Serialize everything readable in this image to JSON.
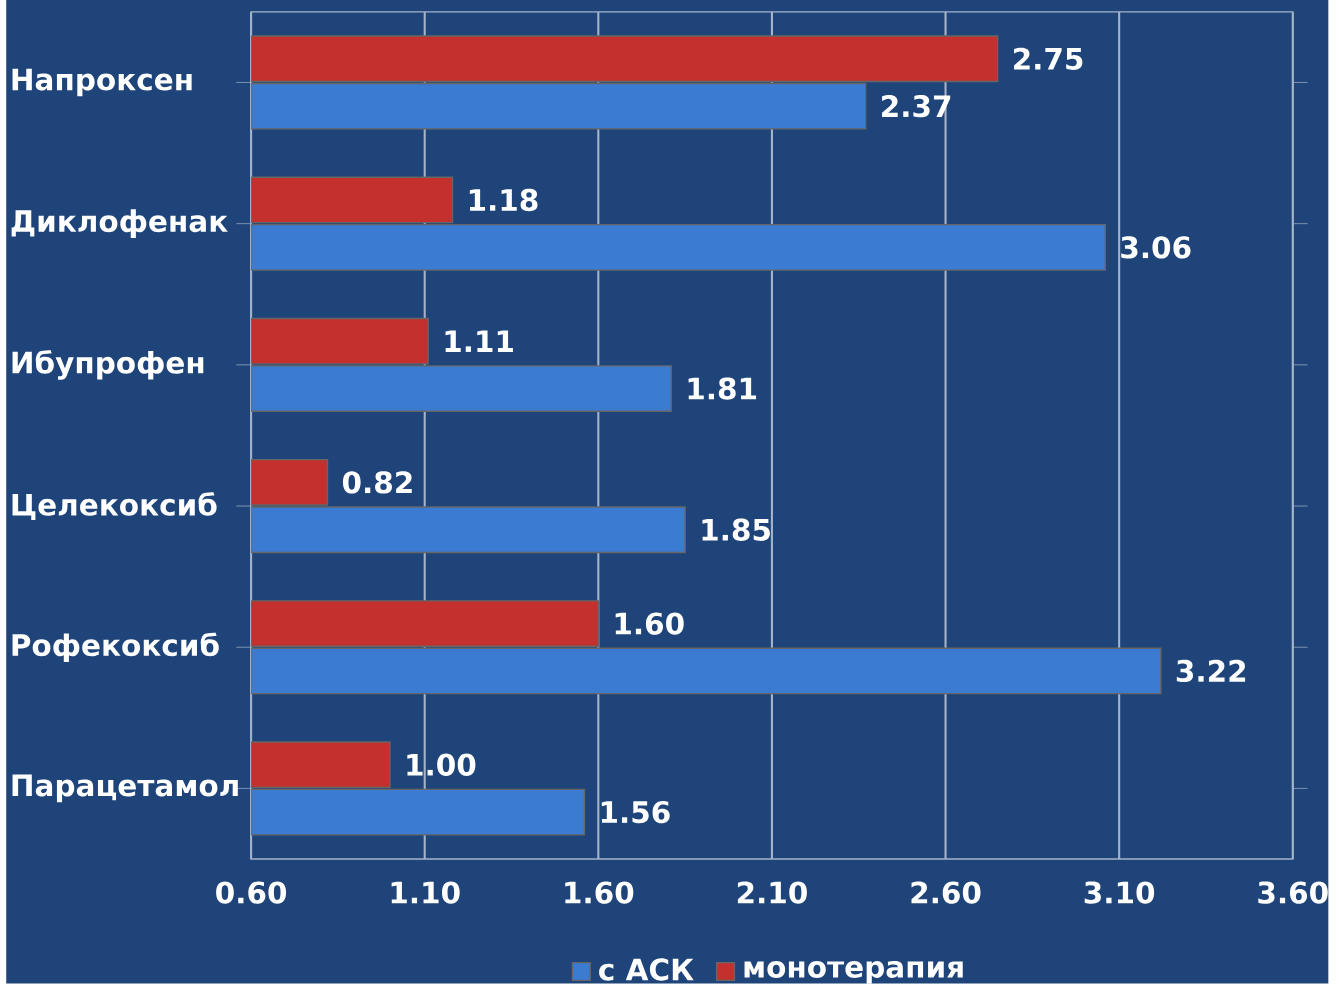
{
  "chart_data": {
    "type": "bar",
    "orientation": "horizontal",
    "categories": [
      "Напроксен",
      "Диклофенак",
      "Ибупрофен",
      "Целекоксиб",
      "Рофекоксиб",
      "Парацетамол"
    ],
    "series": [
      {
        "name": "с АСК",
        "color": "#3b7bd2",
        "values": [
          2.37,
          3.06,
          1.81,
          1.85,
          3.22,
          1.56
        ],
        "value_labels": [
          "2.37",
          "3.06",
          "1.81",
          "1.85",
          "3.22",
          "1.56"
        ]
      },
      {
        "name": "монотерапия",
        "color": "#c3302e",
        "values": [
          2.75,
          1.18,
          1.11,
          0.82,
          1.6,
          1.0
        ],
        "value_labels": [
          "2.75",
          "1.18",
          "1.11",
          "0.82",
          "1.60",
          "1.00"
        ]
      }
    ],
    "xlim": [
      0.6,
      3.6
    ],
    "xticks": [
      {
        "value": 0.6,
        "label": "0.60"
      },
      {
        "value": 1.1,
        "label": "1.10"
      },
      {
        "value": 1.6,
        "label": "1.60"
      },
      {
        "value": 2.1,
        "label": "2.10"
      },
      {
        "value": 2.6,
        "label": "2.60"
      },
      {
        "value": 3.1,
        "label": "3.10"
      },
      {
        "value": 3.6,
        "label": "3.60"
      }
    ],
    "grid": "x",
    "legend": "bottom"
  }
}
